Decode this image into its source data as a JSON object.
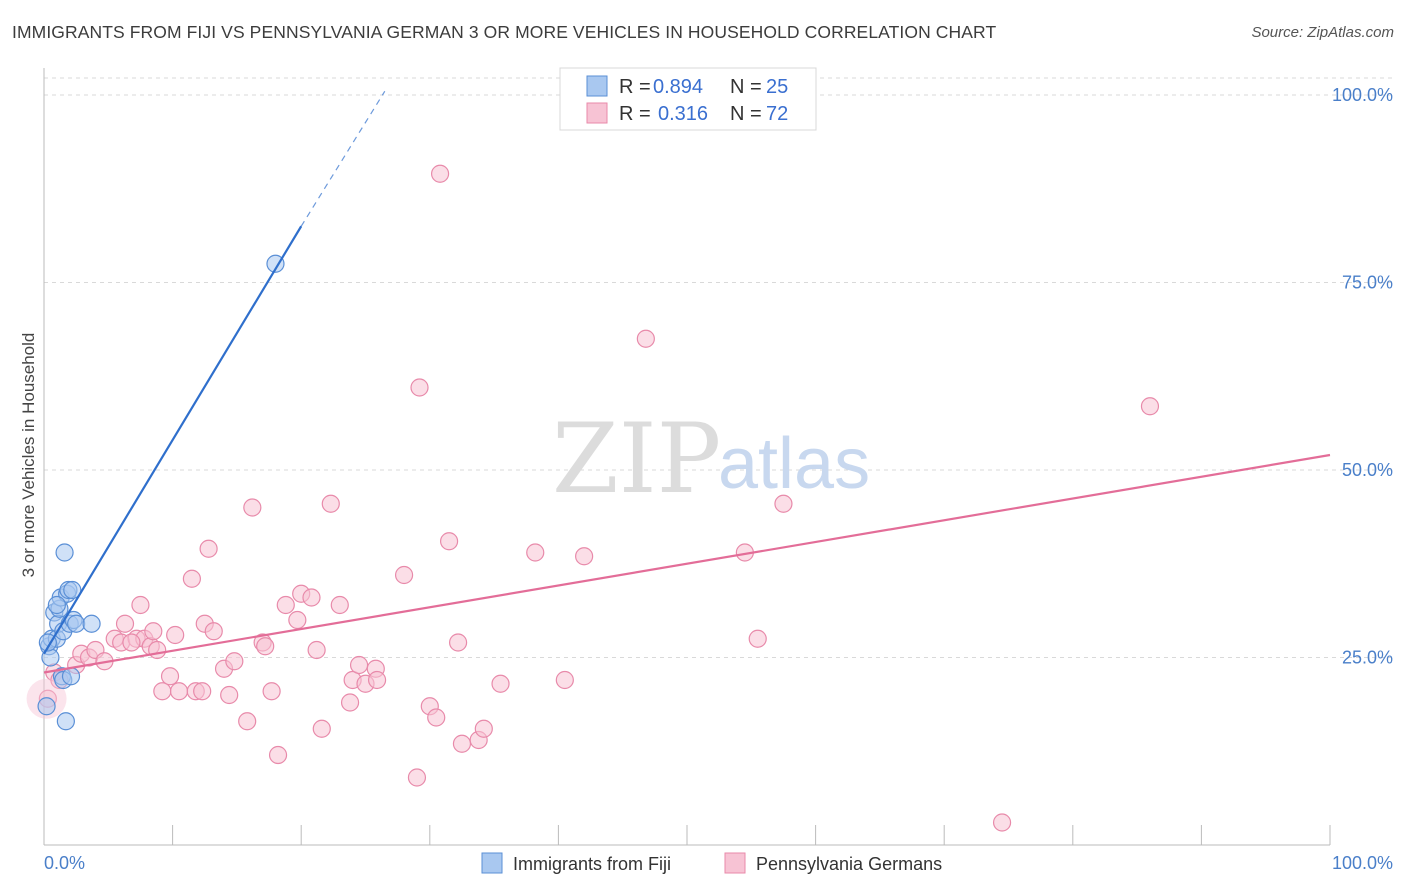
{
  "title": "IMMIGRANTS FROM FIJI VS PENNSYLVANIA GERMAN 3 OR MORE VEHICLES IN HOUSEHOLD CORRELATION CHART",
  "source": "Source: ZipAtlas.com",
  "watermark": {
    "zip": "ZIP",
    "atlas": "atlas"
  },
  "legend": {
    "rows": [
      {
        "r_label": "R =",
        "r_value": "0.894",
        "n_label": "N =",
        "n_value": "25"
      },
      {
        "r_label": "R =",
        "r_value": "0.316",
        "n_label": "N =",
        "n_value": "72"
      }
    ]
  },
  "bottom_legend": [
    "Immigrants from Fiji",
    "Pennsylvania Germans"
  ],
  "colors": {
    "fiji_fill": "#a9c8f0",
    "fiji_stroke": "#5a8fd6",
    "fiji_line": "#2f6fcc",
    "penn_fill": "#f7c3d4",
    "penn_stroke": "#e88aaa",
    "penn_line": "#e36d98",
    "grid": "#d9d9d9",
    "axis_text": "#4a7fc9"
  },
  "chart_data": {
    "type": "scatter",
    "title": "IMMIGRANTS FROM FIJI VS PENNSYLVANIA GERMAN 3 OR MORE VEHICLES IN HOUSEHOLD CORRELATION CHART",
    "xlabel": "",
    "ylabel": "3 or more Vehicles in Household",
    "xlim": [
      0,
      100
    ],
    "ylim": [
      0,
      102
    ],
    "x_tick_labels": [
      "0.0%",
      "100.0%"
    ],
    "y_ticks": [
      25,
      50,
      75,
      100
    ],
    "y_tick_labels": [
      "25.0%",
      "50.0%",
      "75.0%",
      "100.0%"
    ],
    "series": [
      {
        "name": "Immigrants from Fiji",
        "points": [
          [
            0.2,
            18.5
          ],
          [
            0.4,
            26.5
          ],
          [
            0.5,
            25.0
          ],
          [
            0.6,
            27.5
          ],
          [
            0.8,
            31.0
          ],
          [
            1.0,
            27.5
          ],
          [
            1.1,
            29.5
          ],
          [
            1.2,
            31.5
          ],
          [
            1.3,
            33.0
          ],
          [
            1.4,
            22.5
          ],
          [
            1.5,
            28.5
          ],
          [
            1.5,
            22.0
          ],
          [
            1.6,
            39.0
          ],
          [
            1.7,
            16.5
          ],
          [
            1.8,
            33.5
          ],
          [
            1.9,
            34.0
          ],
          [
            2.0,
            29.5
          ],
          [
            2.1,
            22.5
          ],
          [
            2.2,
            34.0
          ],
          [
            2.3,
            30.0
          ],
          [
            2.5,
            29.5
          ],
          [
            3.7,
            29.5
          ],
          [
            1.0,
            32.0
          ],
          [
            0.3,
            27.0
          ],
          [
            18.0,
            77.5
          ]
        ],
        "trend": {
          "x0": 0,
          "y0": 25.5,
          "x1": 20,
          "y1": 82.5,
          "dash_to_x": 26.5,
          "dash_to_y": 100.5
        }
      },
      {
        "name": "Pennsylvania Germans",
        "points": [
          [
            0.3,
            19.5
          ],
          [
            0.8,
            23.0
          ],
          [
            1.2,
            22.0
          ],
          [
            2.5,
            24.0
          ],
          [
            2.9,
            25.5
          ],
          [
            3.5,
            25.0
          ],
          [
            4.0,
            26.0
          ],
          [
            4.7,
            24.5
          ],
          [
            5.5,
            27.5
          ],
          [
            6.0,
            27.0
          ],
          [
            6.3,
            29.5
          ],
          [
            7.2,
            27.5
          ],
          [
            7.5,
            32.0
          ],
          [
            7.8,
            27.5
          ],
          [
            8.3,
            26.5
          ],
          [
            8.5,
            28.5
          ],
          [
            8.8,
            26.0
          ],
          [
            9.2,
            20.5
          ],
          [
            9.8,
            22.5
          ],
          [
            10.2,
            28.0
          ],
          [
            10.5,
            20.5
          ],
          [
            11.5,
            35.5
          ],
          [
            11.8,
            20.5
          ],
          [
            12.5,
            29.5
          ],
          [
            12.8,
            39.5
          ],
          [
            13.2,
            28.5
          ],
          [
            14.0,
            23.5
          ],
          [
            14.4,
            20.0
          ],
          [
            14.8,
            24.5
          ],
          [
            15.8,
            16.5
          ],
          [
            16.2,
            45.0
          ],
          [
            17.0,
            27.0
          ],
          [
            17.2,
            26.5
          ],
          [
            17.7,
            20.5
          ],
          [
            18.2,
            12.0
          ],
          [
            18.8,
            32.0
          ],
          [
            19.7,
            30.0
          ],
          [
            20.0,
            33.5
          ],
          [
            20.8,
            33.0
          ],
          [
            21.2,
            26.0
          ],
          [
            21.6,
            15.5
          ],
          [
            22.3,
            45.5
          ],
          [
            23.0,
            32.0
          ],
          [
            23.8,
            19.0
          ],
          [
            24.0,
            22.0
          ],
          [
            24.5,
            24.0
          ],
          [
            25.0,
            21.5
          ],
          [
            25.8,
            23.5
          ],
          [
            25.9,
            22.0
          ],
          [
            28.0,
            36.0
          ],
          [
            29.0,
            9.0
          ],
          [
            29.2,
            61.0
          ],
          [
            30.0,
            18.5
          ],
          [
            30.5,
            17.0
          ],
          [
            30.8,
            89.5
          ],
          [
            31.5,
            40.5
          ],
          [
            32.2,
            27.0
          ],
          [
            32.5,
            13.5
          ],
          [
            33.8,
            14.0
          ],
          [
            34.2,
            15.5
          ],
          [
            35.5,
            21.5
          ],
          [
            38.2,
            39.0
          ],
          [
            40.5,
            22.0
          ],
          [
            42.0,
            38.5
          ],
          [
            46.8,
            67.5
          ],
          [
            54.5,
            39.0
          ],
          [
            55.5,
            27.5
          ],
          [
            57.5,
            45.5
          ],
          [
            74.5,
            3.0
          ],
          [
            86.0,
            58.5
          ],
          [
            12.3,
            20.5
          ],
          [
            6.8,
            27.0
          ]
        ],
        "trend": {
          "x0": 0,
          "y0": 23.0,
          "x1": 100,
          "y1": 52.0
        }
      }
    ]
  }
}
